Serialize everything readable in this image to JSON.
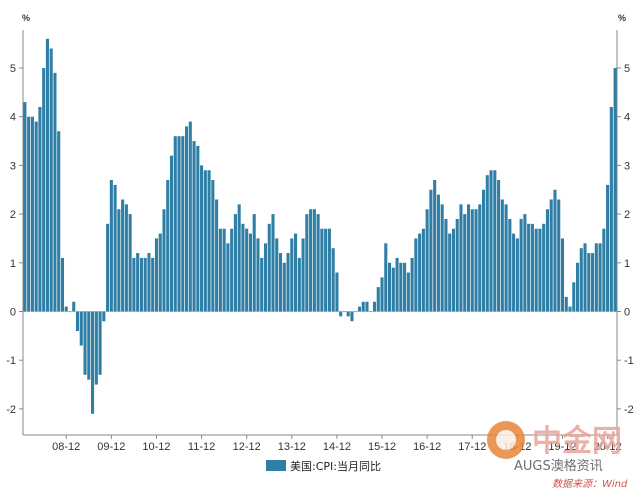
{
  "chart_data": {
    "type": "bar",
    "title": "",
    "xlabel": "",
    "ylabel": "",
    "unit_label": "%",
    "ylim": [
      -2.5,
      6
    ],
    "yticks": [
      -2,
      -1,
      0,
      1,
      2,
      3,
      4,
      5
    ],
    "grid": false,
    "legend_position": "bottom",
    "bar_color": "#2e7ea6",
    "series": [
      {
        "name": "美国:CPI:当月同比",
        "start": "2008-01",
        "values": [
          4.3,
          4.0,
          4.0,
          3.9,
          4.2,
          5.0,
          5.6,
          5.4,
          4.9,
          3.7,
          1.1,
          0.1,
          0.0,
          0.2,
          -0.4,
          -0.7,
          -1.3,
          -1.4,
          -2.1,
          -1.5,
          -1.3,
          -0.2,
          1.8,
          2.7,
          2.6,
          2.1,
          2.3,
          2.2,
          2.0,
          1.1,
          1.2,
          1.1,
          1.1,
          1.2,
          1.1,
          1.5,
          1.6,
          2.1,
          2.7,
          3.2,
          3.6,
          3.6,
          3.6,
          3.8,
          3.9,
          3.5,
          3.4,
          3.0,
          2.9,
          2.9,
          2.7,
          2.3,
          1.7,
          1.7,
          1.4,
          1.7,
          2.0,
          2.2,
          1.8,
          1.7,
          1.6,
          2.0,
          1.5,
          1.1,
          1.4,
          1.8,
          2.0,
          1.5,
          1.2,
          1.0,
          1.2,
          1.5,
          1.6,
          1.1,
          1.5,
          2.0,
          2.1,
          2.1,
          2.0,
          1.7,
          1.7,
          1.7,
          1.3,
          0.8,
          -0.1,
          0.0,
          -0.1,
          -0.2,
          0.0,
          0.1,
          0.2,
          0.2,
          0.0,
          0.2,
          0.5,
          0.7,
          1.4,
          1.0,
          0.9,
          1.1,
          1.0,
          1.0,
          0.8,
          1.1,
          1.5,
          1.6,
          1.7,
          2.1,
          2.5,
          2.7,
          2.4,
          2.2,
          1.9,
          1.6,
          1.7,
          1.9,
          2.2,
          2.0,
          2.2,
          2.1,
          2.1,
          2.2,
          2.5,
          2.8,
          2.9,
          2.9,
          2.7,
          2.3,
          2.2,
          1.9,
          1.6,
          1.5,
          1.9,
          2.0,
          1.8,
          1.8,
          1.7,
          1.7,
          1.8,
          2.1,
          2.3,
          2.5,
          2.3,
          1.5,
          0.3,
          0.1,
          0.6,
          1.0,
          1.3,
          1.4,
          1.2,
          1.2,
          1.4,
          1.4,
          1.7,
          2.6,
          4.2,
          5.0
        ]
      }
    ],
    "x_tick_labels": [
      "08-12",
      "09-12",
      "10-12",
      "11-12",
      "12-12",
      "13-12",
      "14-12",
      "15-12",
      "16-12",
      "17-12",
      "18-12",
      "19-12",
      "20-12"
    ],
    "x_tick_months": [
      "2008-12",
      "2009-12",
      "2010-12",
      "2011-12",
      "2012-12",
      "2013-12",
      "2014-12",
      "2015-12",
      "2016-12",
      "2017-12",
      "2018-12",
      "2019-12",
      "2020-12"
    ]
  },
  "watermark": {
    "logo_text": "中金网",
    "account_text": "AUGS澳格资讯",
    "source_text": "数据来源：Wind"
  },
  "colors": {
    "bar": "#2e7ea6",
    "axis": "#888888",
    "logo_orange": "#e8873a",
    "source_red": "#c0392b"
  }
}
